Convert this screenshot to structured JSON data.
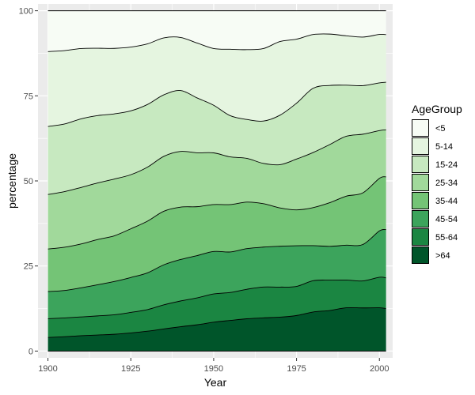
{
  "chart_data": {
    "type": "area",
    "stacked": "percent",
    "xlabel": "Year",
    "ylabel": "percentage",
    "xlim": [
      1897,
      2004
    ],
    "ylim": [
      -2,
      102
    ],
    "x_ticks": [
      "1900",
      "1925",
      "1950",
      "1975",
      "2000"
    ],
    "y_ticks": [
      "0",
      "25",
      "50",
      "75",
      "100"
    ],
    "legend_title": "AgeGroup",
    "legend_position": "right",
    "x": [
      1900,
      1905,
      1910,
      1915,
      1920,
      1925,
      1930,
      1935,
      1940,
      1945,
      1950,
      1955,
      1960,
      1965,
      1970,
      1975,
      1980,
      1985,
      1990,
      1995,
      2000,
      2002
    ],
    "series": [
      {
        "name": ">64",
        "color": "#00552a",
        "values": [
          4,
          4.3,
          4.6,
          4.8,
          5,
          5.4,
          6,
          6.7,
          7.4,
          7.9,
          8.5,
          9,
          9.3,
          9.5,
          9.8,
          10.5,
          11.5,
          12,
          12.8,
          12.8,
          12.6,
          12.5
        ]
      },
      {
        "name": "55-64",
        "color": "#1b8642",
        "values": [
          5.5,
          5.6,
          5.6,
          5.7,
          5.8,
          6.1,
          6.5,
          7.3,
          7.8,
          8.1,
          8.3,
          8.2,
          8.5,
          8.8,
          8.7,
          8.6,
          9.2,
          9,
          8.2,
          8,
          8.9,
          9
        ]
      },
      {
        "name": "45-54",
        "color": "#3ca45c",
        "values": [
          8,
          8.2,
          8.7,
          9.3,
          9.9,
          10.4,
          11.1,
          12.1,
          12.6,
          12.7,
          12.5,
          11.9,
          11.7,
          11.4,
          11.8,
          12,
          10.3,
          10,
          10.3,
          10.8,
          13.5,
          14.2
        ]
      },
      {
        "name": "35-44",
        "color": "#74c476",
        "values": [
          12.5,
          12.9,
          13.1,
          13.5,
          13.6,
          14.5,
          15.6,
          16.2,
          15.9,
          14.7,
          13.8,
          13.9,
          13.4,
          12.4,
          11.1,
          10.6,
          11.2,
          12.9,
          14.5,
          15.3,
          15.3,
          15.5
        ]
      },
      {
        "name": "25-34",
        "color": "#a1d99b",
        "values": [
          16,
          16.6,
          16.9,
          16.9,
          16.9,
          16.1,
          16.3,
          16.6,
          16.9,
          16.2,
          15.2,
          14,
          12.6,
          11.5,
          12.5,
          15,
          16.2,
          17.2,
          17.7,
          17.4,
          13.9,
          13.8
        ]
      },
      {
        "name": "15-24",
        "color": "#c7e9c0",
        "values": [
          20,
          20.2,
          20.5,
          20.1,
          19.4,
          19,
          18.9,
          18.6,
          18.5,
          16.5,
          14,
          12.1,
          11.2,
          12.1,
          14.3,
          16.5,
          18.9,
          17.5,
          15.1,
          14.4,
          13.9,
          14
        ]
      },
      {
        "name": "5-14",
        "color": "#e5f5e0",
        "values": [
          22,
          21.9,
          21,
          20.1,
          19.5,
          19,
          18.3,
          17.2,
          16.1,
          16.5,
          16.7,
          19.5,
          20.1,
          20.7,
          21.3,
          18.9,
          15.8,
          15.2,
          14.6,
          14.4,
          14.1,
          14
        ]
      },
      {
        "name": "<5",
        "color": "#f7fcf5",
        "values": [
          12,
          11.9,
          11.3,
          11.2,
          11.2,
          10.8,
          10,
          8.2,
          8.1,
          9.7,
          11.1,
          11.3,
          11.2,
          10.8,
          8.9,
          8.4,
          7,
          6.9,
          7.4,
          7.8,
          6.9,
          7
        ]
      }
    ]
  }
}
